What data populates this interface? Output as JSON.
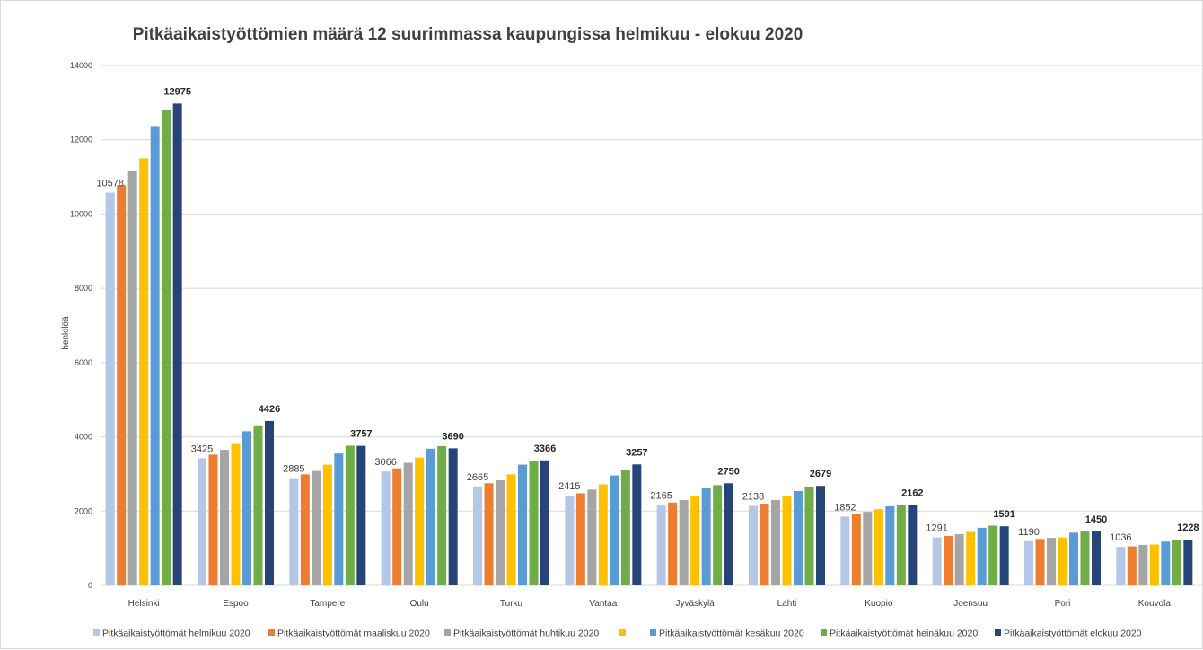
{
  "chart_data": {
    "type": "bar",
    "title": "Pitkäaikaistyöttömien määrä 12 suurimmassa kaupungissa helmikuu - elokuu 2020",
    "xlabel": "",
    "ylabel": "henkilöä",
    "ylim": [
      0,
      14000
    ],
    "yticks": [
      0,
      2000,
      4000,
      6000,
      8000,
      10000,
      12000,
      14000
    ],
    "grid": true,
    "legend_position": "bottom",
    "categories": [
      "Helsinki",
      "Espoo",
      "Tampere",
      "Oulu",
      "Turku",
      "Vantaa",
      "Jyväskylä",
      "Lahti",
      "Kuopio",
      "Joensuu",
      "Pori",
      "Kouvola"
    ],
    "series": [
      {
        "name": "Pitkäaikaistyöttömät helmikuu 2020",
        "color": "#b4c7e7",
        "values": [
          10578,
          3425,
          2885,
          3066,
          2665,
          2415,
          2165,
          2138,
          1852,
          1291,
          1190,
          1036
        ]
      },
      {
        "name": "Pitkäaikaistyöttömät maaliskuu 2020",
        "color": "#ed7d31",
        "values": [
          10780,
          3520,
          2990,
          3150,
          2750,
          2480,
          2230,
          2200,
          1920,
          1330,
          1250,
          1050
        ]
      },
      {
        "name": "Pitkäaikaistyöttömät huhtikuu 2020",
        "color": "#a5a5a5",
        "values": [
          11150,
          3650,
          3080,
          3300,
          2830,
          2580,
          2300,
          2300,
          1980,
          1380,
          1280,
          1090
        ]
      },
      {
        "name": "",
        "color": "#ffc000",
        "values": [
          11500,
          3830,
          3250,
          3440,
          2990,
          2720,
          2410,
          2400,
          2050,
          1440,
          1290,
          1100
        ]
      },
      {
        "name": "Pitkäaikaistyöttömät kesäkuu 2020",
        "color": "#5b9bd5",
        "values": [
          12370,
          4150,
          3550,
          3680,
          3250,
          2960,
          2610,
          2540,
          2130,
          1550,
          1420,
          1180
        ]
      },
      {
        "name": "Pitkäaikaistyöttömät heinäkuu 2020",
        "color": "#70ad47",
        "values": [
          12800,
          4310,
          3760,
          3750,
          3360,
          3120,
          2700,
          2640,
          2160,
          1610,
          1450,
          1230
        ]
      },
      {
        "name": "Pitkäaikaistyöttömät elokuu 2020",
        "color": "#264478",
        "values": [
          12975,
          4426,
          3757,
          3690,
          3366,
          3257,
          2750,
          2679,
          2162,
          1591,
          1450,
          1228
        ]
      }
    ],
    "data_labels": {
      "first_series": [
        "10578",
        "3425",
        "2885",
        "3066",
        "2665",
        "2415",
        "2165",
        "2138",
        "1852",
        "1291",
        "1190",
        "1036"
      ],
      "last_series": [
        "12975",
        "4426",
        "3757",
        "3690",
        "3366",
        "3257",
        "2750",
        "2679",
        "2162",
        "1591",
        "1450",
        "1228"
      ]
    }
  }
}
